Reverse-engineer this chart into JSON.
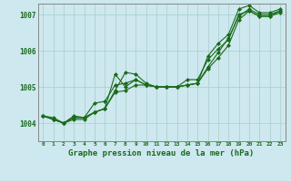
{
  "title": "Graphe pression niveau de la mer (hPa)",
  "background_color": "#cde8ee",
  "grid_color": "#aacccc",
  "line_color": "#1a6b1a",
  "marker_color": "#1a6b1a",
  "xlim": [
    -0.5,
    23.5
  ],
  "ylim": [
    1003.5,
    1007.3
  ],
  "yticks": [
    1004,
    1005,
    1006,
    1007
  ],
  "xticks": [
    0,
    1,
    2,
    3,
    4,
    5,
    6,
    7,
    8,
    9,
    10,
    11,
    12,
    13,
    14,
    15,
    16,
    17,
    18,
    19,
    20,
    21,
    22,
    23
  ],
  "series": [
    [
      1004.2,
      1004.1,
      1004.0,
      1004.15,
      1004.15,
      1004.3,
      1004.4,
      1004.85,
      1004.9,
      1005.05,
      1005.05,
      1005.0,
      1005.0,
      1005.0,
      1005.05,
      1005.1,
      1005.5,
      1005.8,
      1006.15,
      1006.85,
      1007.1,
      1006.95,
      1006.95,
      1007.05
    ],
    [
      1004.2,
      1004.1,
      1004.0,
      1004.15,
      1004.15,
      1004.55,
      1004.6,
      1005.05,
      1005.1,
      1005.2,
      1005.05,
      1005.0,
      1005.0,
      1005.0,
      1005.05,
      1005.1,
      1005.55,
      1005.95,
      1006.35,
      1006.95,
      1007.15,
      1007.0,
      1007.0,
      1007.1
    ],
    [
      1004.2,
      1004.15,
      1004.0,
      1004.2,
      1004.15,
      1004.3,
      1004.4,
      1005.35,
      1005.0,
      1005.2,
      1005.05,
      1005.0,
      1005.0,
      1005.0,
      1005.2,
      1005.2,
      1005.75,
      1006.05,
      1006.3,
      1007.0,
      1007.1,
      1006.95,
      1006.95,
      1007.1
    ],
    [
      1004.2,
      1004.1,
      1004.0,
      1004.1,
      1004.1,
      1004.3,
      1004.4,
      1004.9,
      1005.4,
      1005.35,
      1005.1,
      1005.0,
      1005.0,
      1005.0,
      1005.05,
      1005.1,
      1005.85,
      1006.2,
      1006.45,
      1007.15,
      1007.25,
      1007.05,
      1007.05,
      1007.15
    ]
  ]
}
